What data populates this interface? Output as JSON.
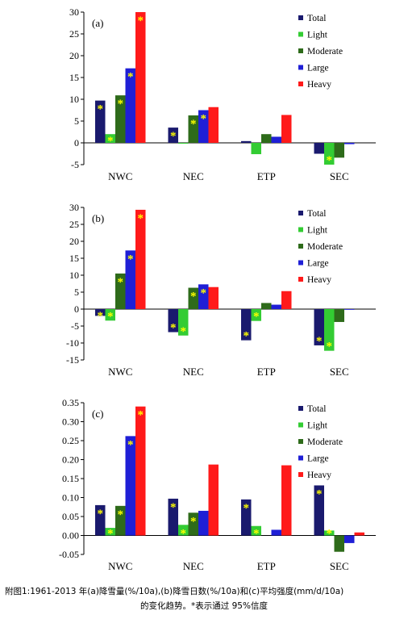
{
  "colors": {
    "Total": "#1a1a6e",
    "Light": "#33cc33",
    "Moderate": "#2e6b1a",
    "Large": "#1f1fd6",
    "Heavy": "#ff1a1a",
    "star": "#ffff00"
  },
  "chart_data": [
    {
      "type": "bar",
      "panel_label": "(a)",
      "categories": [
        "NWC",
        "NEC",
        "ETP",
        "SEC"
      ],
      "ylim": [
        -5,
        30
      ],
      "yticks": [
        -5,
        0,
        5,
        10,
        15,
        20,
        25,
        30
      ],
      "ytick_labels": [
        "-5",
        "0",
        "5",
        "10",
        "15",
        "20",
        "25",
        "30"
      ],
      "legend_position": "top-right",
      "series": [
        {
          "name": "Total",
          "values": [
            9.7,
            3.5,
            0.4,
            -2.5
          ],
          "significant": [
            true,
            true,
            false,
            false
          ]
        },
        {
          "name": "Light",
          "values": [
            2.0,
            -0.2,
            -2.6,
            -5.0
          ],
          "significant": [
            true,
            false,
            false,
            true
          ]
        },
        {
          "name": "Moderate",
          "values": [
            10.9,
            6.3,
            2.0,
            -3.4
          ],
          "significant": [
            true,
            true,
            false,
            false
          ]
        },
        {
          "name": "Large",
          "values": [
            17.1,
            7.5,
            1.4,
            -0.3
          ],
          "significant": [
            true,
            true,
            false,
            false
          ]
        },
        {
          "name": "Heavy",
          "values": [
            30.0,
            8.2,
            6.4,
            0.0
          ],
          "significant": [
            true,
            false,
            false,
            false
          ]
        }
      ]
    },
    {
      "type": "bar",
      "panel_label": "(b)",
      "categories": [
        "NWC",
        "NEC",
        "ETP",
        "SEC"
      ],
      "ylim": [
        -15,
        30
      ],
      "yticks": [
        -15,
        -10,
        -5,
        0,
        5,
        10,
        15,
        20,
        25,
        30
      ],
      "ytick_labels": [
        "-15",
        "-10",
        "-5",
        "0",
        "5",
        "10",
        "15",
        "20",
        "25",
        "30"
      ],
      "legend_position": "top-right",
      "series": [
        {
          "name": "Total",
          "values": [
            -2.0,
            -6.8,
            -9.2,
            -10.7
          ],
          "significant": [
            true,
            true,
            true,
            true
          ]
        },
        {
          "name": "Light",
          "values": [
            -3.4,
            -7.8,
            -3.5,
            -12.3
          ],
          "significant": [
            true,
            true,
            true,
            true
          ]
        },
        {
          "name": "Moderate",
          "values": [
            10.5,
            6.3,
            1.8,
            -3.8
          ],
          "significant": [
            true,
            true,
            false,
            false
          ]
        },
        {
          "name": "Large",
          "values": [
            17.3,
            7.3,
            1.3,
            -0.2
          ],
          "significant": [
            true,
            true,
            false,
            false
          ]
        },
        {
          "name": "Heavy",
          "values": [
            29.3,
            6.5,
            5.3,
            0.0
          ],
          "significant": [
            true,
            false,
            false,
            false
          ]
        }
      ]
    },
    {
      "type": "bar",
      "panel_label": "(c)",
      "categories": [
        "NWC",
        "NEC",
        "ETP",
        "SEC"
      ],
      "ylim": [
        -0.05,
        0.35
      ],
      "yticks": [
        -0.05,
        0,
        0.05,
        0.1,
        0.15,
        0.2,
        0.25,
        0.3,
        0.35
      ],
      "ytick_labels": [
        "-0.05",
        "0.00",
        "0.05",
        "0.10",
        "0.15",
        "0.20",
        "0.25",
        "0.30",
        "0.35"
      ],
      "legend_position": "top-right",
      "series": [
        {
          "name": "Total",
          "values": [
            0.08,
            0.097,
            0.095,
            0.132
          ],
          "significant": [
            true,
            true,
            true,
            true
          ]
        },
        {
          "name": "Light",
          "values": [
            0.02,
            0.028,
            0.025,
            0.013
          ],
          "significant": [
            true,
            true,
            true,
            true
          ]
        },
        {
          "name": "Moderate",
          "values": [
            0.078,
            0.06,
            0.0,
            -0.043
          ],
          "significant": [
            true,
            true,
            false,
            false
          ]
        },
        {
          "name": "Large",
          "values": [
            0.262,
            0.065,
            0.015,
            -0.02
          ],
          "significant": [
            true,
            false,
            false,
            false
          ]
        },
        {
          "name": "Heavy",
          "values": [
            0.34,
            0.187,
            0.185,
            0.008
          ],
          "significant": [
            true,
            false,
            false,
            false
          ]
        }
      ]
    }
  ],
  "caption": {
    "line1": "附图1:1961-2013 年(a)降雪量(%/10a),(b)降雪日数(%/10a)和(c)平均强度(mm/d/10a)",
    "line2": "的变化趋势。*表示通过 95%信度"
  }
}
